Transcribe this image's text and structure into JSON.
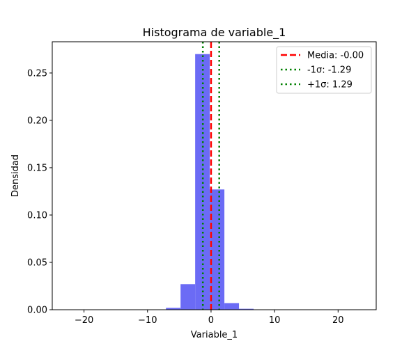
{
  "chart_data": {
    "type": "bar",
    "title": "Histograma de variable_1",
    "xlabel": "Variable_1",
    "ylabel": "Densidad",
    "xlim": [
      -25,
      26
    ],
    "ylim": [
      0,
      0.283
    ],
    "xticks": [
      -20,
      -10,
      0,
      10,
      20
    ],
    "xtick_labels": [
      "−20",
      "−10",
      "0",
      "10",
      "20"
    ],
    "yticks": [
      0.0,
      0.05,
      0.1,
      0.15,
      0.2,
      0.25
    ],
    "ytick_labels": [
      "0.00",
      "0.05",
      "0.10",
      "0.15",
      "0.20",
      "0.25"
    ],
    "bin_edges": [
      -23.2,
      -20.9,
      -18.6,
      -16.3,
      -14.0,
      -11.7,
      -9.4,
      -7.1,
      -4.8,
      -2.5,
      -0.2,
      2.1,
      4.4,
      6.7,
      9.0,
      11.3,
      13.6,
      15.9,
      18.2,
      20.5,
      22.8
    ],
    "densities": [
      0.0,
      0.0,
      0.0,
      0.0,
      0.0,
      0.0,
      0.0,
      0.002,
      0.027,
      0.27,
      0.127,
      0.007,
      0.001,
      0.0,
      0.0,
      0.0,
      0.0,
      0.0,
      0.0,
      0.0
    ],
    "bar_color": "#6b6bf5",
    "vlines": [
      {
        "label": "Media: -0.00",
        "x": -0.0,
        "color": "#ff0000",
        "style": "dashed"
      },
      {
        "label": "-1σ: -1.29",
        "x": -1.29,
        "color": "#008000",
        "style": "dotted"
      },
      {
        "label": "+1σ: 1.29",
        "x": 1.29,
        "color": "#008000",
        "style": "dotted"
      }
    ],
    "legend_position": "top-right",
    "grid": false
  }
}
